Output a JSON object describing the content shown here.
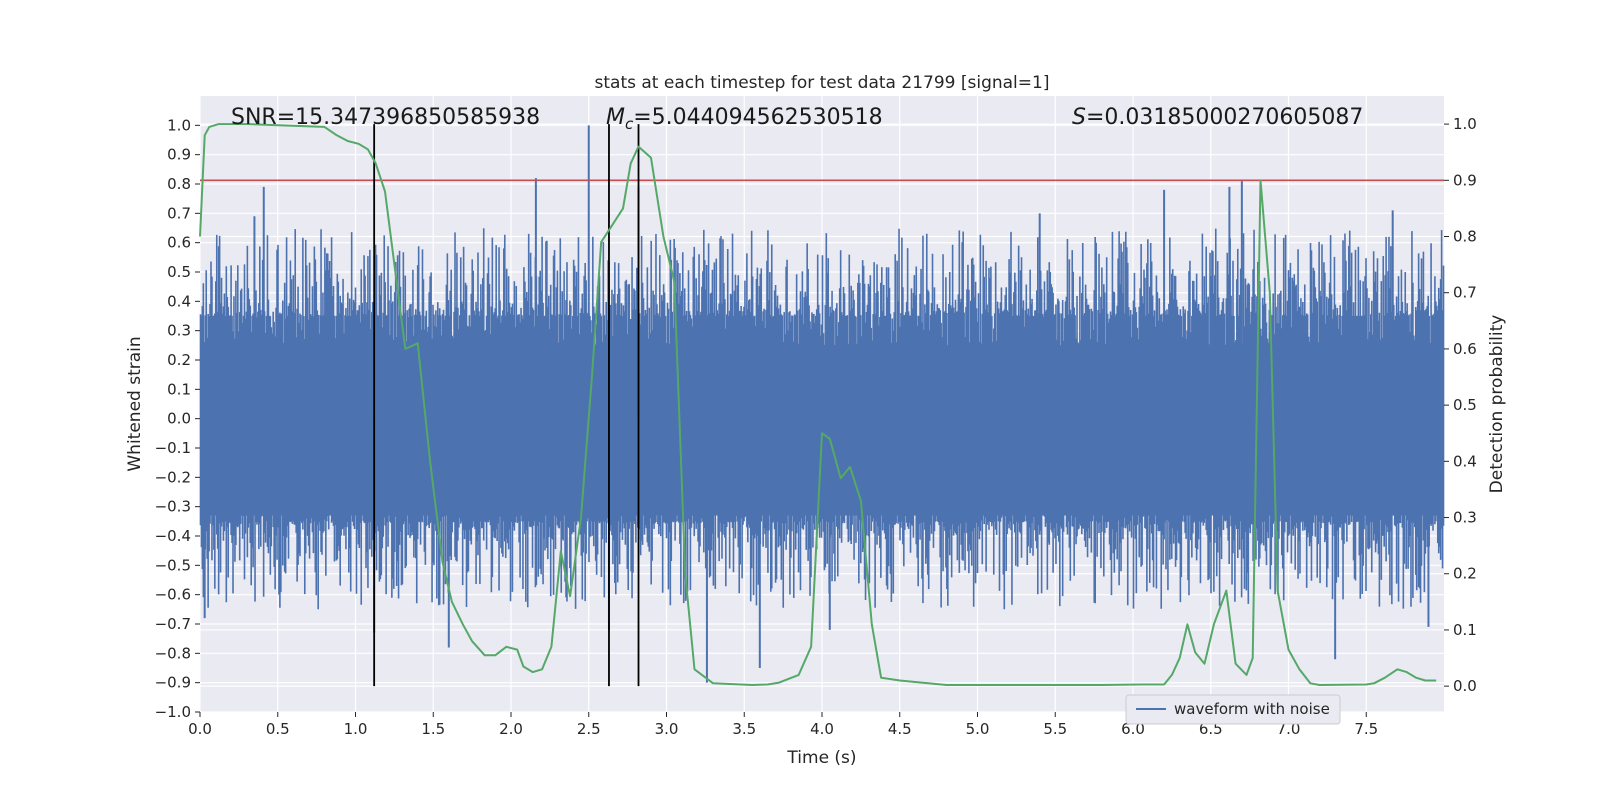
{
  "chart_data": {
    "type": "line",
    "title": "stats at each timestep for test data 21799 [signal=1]",
    "xlabel": "Time (s)",
    "ylabel_left": "Whitened strain",
    "ylabel_right": "Detection probability",
    "xlim": [
      0.0,
      8.0
    ],
    "ylim_left": [
      -1.0,
      1.1
    ],
    "ylim_right": [
      -0.046,
      1.05
    ],
    "x_ticks": [
      0.0,
      0.5,
      1.0,
      1.5,
      2.0,
      2.5,
      3.0,
      3.5,
      4.0,
      4.5,
      5.0,
      5.5,
      6.0,
      6.5,
      7.0,
      7.5
    ],
    "x_tick_labels": [
      "0.0",
      "0.5",
      "1.0",
      "1.5",
      "2.0",
      "2.5",
      "3.0",
      "3.5",
      "4.0",
      "4.5",
      "5.0",
      "5.5",
      "6.0",
      "6.5",
      "7.0",
      "7.5"
    ],
    "y_left_ticks": [
      1.0,
      0.9,
      0.8,
      0.7,
      0.6,
      0.5,
      0.4,
      0.3,
      0.2,
      0.1,
      0.0,
      -0.1,
      -0.2,
      -0.3,
      -0.4,
      -0.5,
      -0.6,
      -0.7,
      -0.8,
      -0.9,
      -1.0
    ],
    "y_left_tick_labels": [
      "1.0",
      "0.9",
      "0.8",
      "0.7",
      "0.6",
      "0.5",
      "0.4",
      "0.3",
      "0.2",
      "0.1",
      "0.0",
      "−0.1",
      "−0.2",
      "−0.3",
      "−0.4",
      "−0.5",
      "−0.6",
      "−0.7",
      "−0.8",
      "−0.9",
      "−1.0"
    ],
    "y_right_ticks": [
      1.0,
      0.9,
      0.8,
      0.7,
      0.6,
      0.5,
      0.4,
      0.3,
      0.2,
      0.1,
      0.0
    ],
    "y_right_tick_labels": [
      "1.0",
      "0.9",
      "0.8",
      "0.7",
      "0.6",
      "0.5",
      "0.4",
      "0.3",
      "0.2",
      "0.1",
      "0.0"
    ],
    "grid": true,
    "legend_position": "lower-right",
    "series": [
      {
        "name": "waveform with noise",
        "axis": "left",
        "color": "#4c72b0",
        "envelope": {
          "core_band": [
            -0.33,
            0.23
          ],
          "typical_positive_peaks": [
            0.35,
            0.65
          ],
          "typical_negative_peaks": [
            -0.35,
            -0.65
          ]
        },
        "spikes": [
          {
            "x": 0.03,
            "y": -0.68
          },
          {
            "x": 0.35,
            "y": 0.69
          },
          {
            "x": 0.41,
            "y": 0.79
          },
          {
            "x": 1.12,
            "y": -0.73
          },
          {
            "x": 1.6,
            "y": -0.78
          },
          {
            "x": 2.16,
            "y": 0.82
          },
          {
            "x": 2.5,
            "y": 1.0
          },
          {
            "x": 2.63,
            "y": -0.72
          },
          {
            "x": 2.82,
            "y": 0.79
          },
          {
            "x": 3.26,
            "y": -0.9
          },
          {
            "x": 3.6,
            "y": -0.85
          },
          {
            "x": 4.05,
            "y": -0.72
          },
          {
            "x": 5.4,
            "y": 0.7
          },
          {
            "x": 6.2,
            "y": 0.78
          },
          {
            "x": 6.62,
            "y": 0.79
          },
          {
            "x": 6.7,
            "y": 0.81
          },
          {
            "x": 7.3,
            "y": -0.82
          },
          {
            "x": 7.67,
            "y": 0.71
          },
          {
            "x": 7.9,
            "y": -0.71
          }
        ]
      },
      {
        "name": "",
        "axis": "right",
        "color": "#55a868",
        "x": [
          0.0,
          0.03,
          0.06,
          0.12,
          0.3,
          0.8,
          0.88,
          0.95,
          1.02,
          1.08,
          1.13,
          1.19,
          1.25,
          1.32,
          1.4,
          1.48,
          1.56,
          1.62,
          1.69,
          1.75,
          1.83,
          1.9,
          1.97,
          2.04,
          2.08,
          2.14,
          2.2,
          2.26,
          2.32,
          2.38,
          2.45,
          2.52,
          2.58,
          2.65,
          2.72,
          2.77,
          2.82,
          2.9,
          2.98,
          3.05,
          3.12,
          3.18,
          3.3,
          3.55,
          3.65,
          3.72,
          3.85,
          3.93,
          4.0,
          4.05,
          4.12,
          4.18,
          4.25,
          4.32,
          4.38,
          4.5,
          4.8,
          5.8,
          6.05,
          6.2,
          6.25,
          6.3,
          6.35,
          6.4,
          6.46,
          6.52,
          6.6,
          6.66,
          6.73,
          6.77,
          6.82,
          6.88,
          6.93,
          7.0,
          7.07,
          7.14,
          7.2,
          7.5,
          7.55,
          7.62,
          7.7,
          7.76,
          7.82,
          7.88,
          7.95
        ],
        "values": [
          0.8,
          0.98,
          0.995,
          1.0,
          1.0,
          0.995,
          0.98,
          0.97,
          0.965,
          0.955,
          0.93,
          0.88,
          0.75,
          0.6,
          0.61,
          0.4,
          0.22,
          0.15,
          0.11,
          0.08,
          0.055,
          0.055,
          0.07,
          0.065,
          0.035,
          0.025,
          0.03,
          0.07,
          0.24,
          0.16,
          0.3,
          0.55,
          0.79,
          0.82,
          0.85,
          0.93,
          0.96,
          0.94,
          0.8,
          0.72,
          0.2,
          0.03,
          0.005,
          0.002,
          0.003,
          0.006,
          0.02,
          0.07,
          0.45,
          0.44,
          0.37,
          0.39,
          0.33,
          0.11,
          0.015,
          0.01,
          0.002,
          0.002,
          0.003,
          0.003,
          0.02,
          0.05,
          0.11,
          0.06,
          0.04,
          0.11,
          0.17,
          0.04,
          0.02,
          0.05,
          0.9,
          0.7,
          0.17,
          0.065,
          0.03,
          0.005,
          0.002,
          0.003,
          0.005,
          0.015,
          0.03,
          0.025,
          0.015,
          0.01,
          0.01
        ]
      }
    ],
    "reference_lines": [
      {
        "orientation": "horizontal",
        "axis": "right",
        "value": 0.9,
        "color": "#c44e52"
      },
      {
        "orientation": "vertical",
        "x": 1.12,
        "y_range": [
          0.0,
          1.0
        ],
        "color": "#000000"
      },
      {
        "orientation": "vertical",
        "x": 2.63,
        "y_range": [
          0.0,
          1.0
        ],
        "color": "#000000"
      },
      {
        "orientation": "vertical",
        "x": 2.82,
        "y_range": [
          0.0,
          1.0
        ],
        "color": "#000000"
      }
    ],
    "annotations": [
      {
        "text": "SNR=15.347396850585938"
      },
      {
        "text_prefix": "M",
        "text_subscript": "c",
        "text_rest": "=5.044094562530518"
      },
      {
        "text_prefix": "S",
        "text_rest": "=0.03185000270605087"
      }
    ],
    "legend_entries": [
      "waveform with noise"
    ],
    "colors": {
      "plot_background": "#eaeaf2",
      "grid": "#ffffff",
      "waveform": "#4c72b0",
      "probability": "#55a868",
      "threshold": "#c44e52",
      "markers": "#000000"
    }
  }
}
